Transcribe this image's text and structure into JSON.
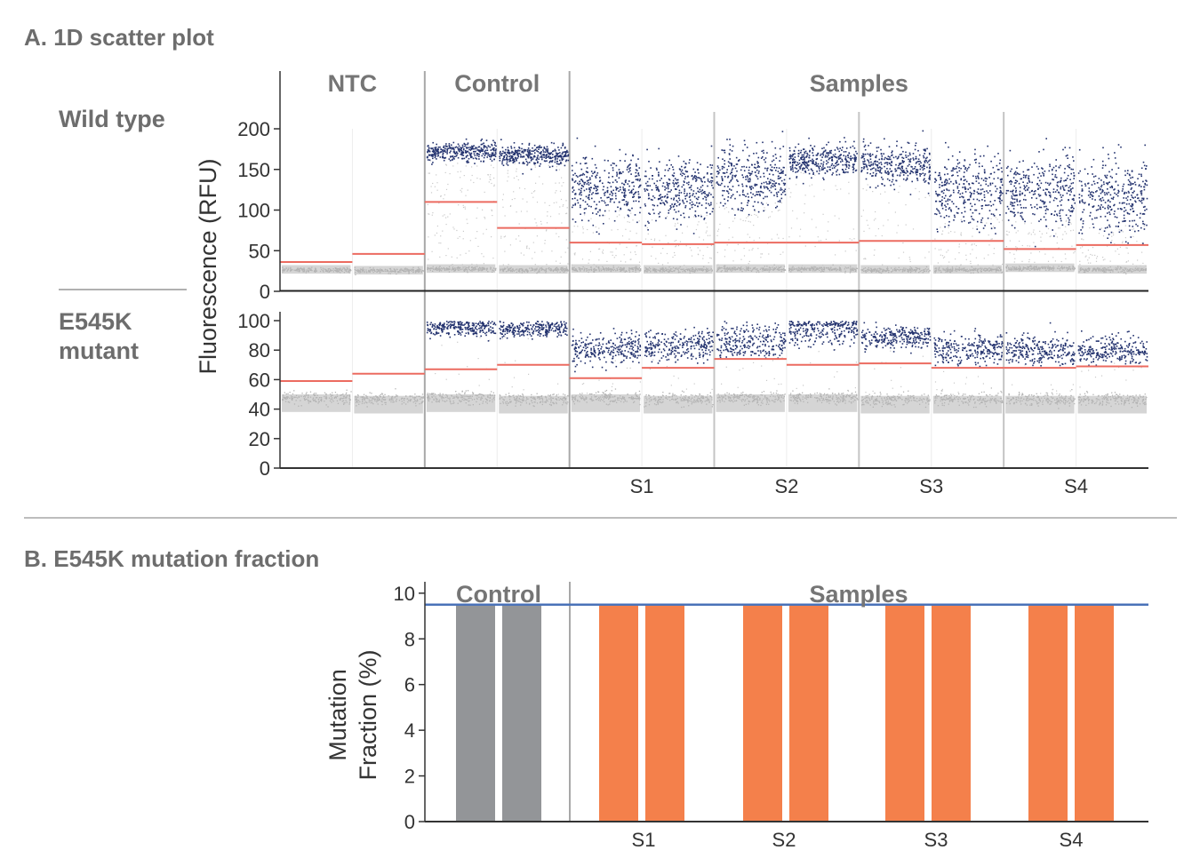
{
  "panel_a": {
    "title": "A. 1D scatter plot",
    "row_labels": [
      "Wild type",
      "E545K",
      "mutant"
    ]
  },
  "panel_b": {
    "title": "B. E545K mutation fraction"
  },
  "colors": {
    "positive": "#24336f",
    "negative": "#b3b3b3",
    "threshold": "#ec6b60",
    "control_bar": "#939598",
    "sample_bar": "#f4804b",
    "reference_line": "#4a72b8"
  },
  "chart_data": [
    {
      "type": "scatter",
      "title": "A. 1D scatter plot",
      "ylabel": "Fluorescence (RFU)",
      "group_headers": [
        "NTC",
        "Control",
        "Samples"
      ],
      "group_wells": [
        2,
        2,
        8
      ],
      "x_labels": [
        "S1",
        "S2",
        "S3",
        "S4"
      ],
      "channels": [
        {
          "name": "Wild type",
          "ylim": [
            0,
            200
          ],
          "yticks": [
            0,
            50,
            100,
            150,
            200
          ],
          "wells": [
            {
              "threshold": 36,
              "positive_center": null,
              "positive_spread": 0,
              "negative_level": 27,
              "rain": 0
            },
            {
              "threshold": 46,
              "positive_center": null,
              "positive_spread": 0,
              "negative_level": 26,
              "rain": 0
            },
            {
              "threshold": 110,
              "positive_center": 172,
              "positive_spread": 6,
              "negative_level": 28,
              "rain": 0.5
            },
            {
              "threshold": 78,
              "positive_center": 168,
              "positive_spread": 6,
              "negative_level": 27,
              "rain": 0.45
            },
            {
              "threshold": 60,
              "positive_center": 128,
              "positive_spread": 18,
              "negative_level": 28,
              "rain": 0.3
            },
            {
              "threshold": 58,
              "positive_center": 125,
              "positive_spread": 20,
              "negative_level": 27,
              "rain": 0.3
            },
            {
              "threshold": 60,
              "positive_center": 140,
              "positive_spread": 20,
              "negative_level": 28,
              "rain": 0.3
            },
            {
              "threshold": 60,
              "positive_center": 162,
              "positive_spread": 10,
              "negative_level": 28,
              "rain": 0.2
            },
            {
              "threshold": 62,
              "positive_center": 155,
              "positive_spread": 12,
              "negative_level": 27,
              "rain": 0.2
            },
            {
              "threshold": 62,
              "positive_center": 125,
              "positive_spread": 22,
              "negative_level": 27,
              "rain": 0.3
            },
            {
              "threshold": 52,
              "positive_center": 122,
              "positive_spread": 22,
              "negative_level": 29,
              "rain": 0.3
            },
            {
              "threshold": 57,
              "positive_center": 118,
              "positive_spread": 24,
              "negative_level": 27,
              "rain": 0.3
            }
          ]
        },
        {
          "name": "E545K mutant",
          "ylim": [
            0,
            100
          ],
          "yticks": [
            0,
            20,
            40,
            60,
            80,
            100
          ],
          "wells": [
            {
              "threshold": 59,
              "positive_center": null,
              "positive_spread": 0,
              "negative_level": 48,
              "rain": 0
            },
            {
              "threshold": 64,
              "positive_center": null,
              "positive_spread": 0,
              "negative_level": 47,
              "rain": 0
            },
            {
              "threshold": 67,
              "positive_center": 96,
              "positive_spread": 3,
              "negative_level": 48,
              "rain": 0.05
            },
            {
              "threshold": 70,
              "positive_center": 95,
              "positive_spread": 3,
              "negative_level": 47,
              "rain": 0.05
            },
            {
              "threshold": 61,
              "positive_center": 81,
              "positive_spread": 5,
              "negative_level": 48,
              "rain": 0.05
            },
            {
              "threshold": 68,
              "positive_center": 83,
              "positive_spread": 5,
              "negative_level": 47,
              "rain": 0.05
            },
            {
              "threshold": 74,
              "positive_center": 86,
              "positive_spread": 6,
              "negative_level": 48,
              "rain": 0.05
            },
            {
              "threshold": 70,
              "positive_center": 95,
              "positive_spread": 6,
              "negative_level": 48,
              "rain": 0.05
            },
            {
              "threshold": 71,
              "positive_center": 89,
              "positive_spread": 4,
              "negative_level": 47,
              "rain": 0.05
            },
            {
              "threshold": 68,
              "positive_center": 81,
              "positive_spread": 5,
              "negative_level": 47,
              "rain": 0.05
            },
            {
              "threshold": 68,
              "positive_center": 80,
              "positive_spread": 5,
              "negative_level": 47,
              "rain": 0.05
            },
            {
              "threshold": 69,
              "positive_center": 80,
              "positive_spread": 5,
              "negative_level": 47,
              "rain": 0.05
            }
          ]
        }
      ]
    },
    {
      "type": "bar",
      "title": "B. E545K mutation fraction",
      "ylabel": [
        "Mutation",
        "Fraction (%)"
      ],
      "ylim": [
        0,
        10.5
      ],
      "yticks": [
        0,
        2,
        4,
        6,
        8,
        10
      ],
      "group_headers": [
        "Control",
        "Samples"
      ],
      "x_labels": [
        "S1",
        "S2",
        "S3",
        "S4"
      ],
      "groups": [
        {
          "label": "Control",
          "values": [
            9.5,
            9.5
          ],
          "color": "#939598"
        },
        {
          "label": "S1",
          "values": [
            9.5,
            9.5
          ],
          "color": "#f4804b"
        },
        {
          "label": "S2",
          "values": [
            9.5,
            9.5
          ],
          "color": "#f4804b"
        },
        {
          "label": "S3",
          "values": [
            9.5,
            9.5
          ],
          "color": "#f4804b"
        },
        {
          "label": "S4",
          "values": [
            9.5,
            9.5
          ],
          "color": "#f4804b"
        }
      ],
      "reference_line": 9.5
    }
  ]
}
